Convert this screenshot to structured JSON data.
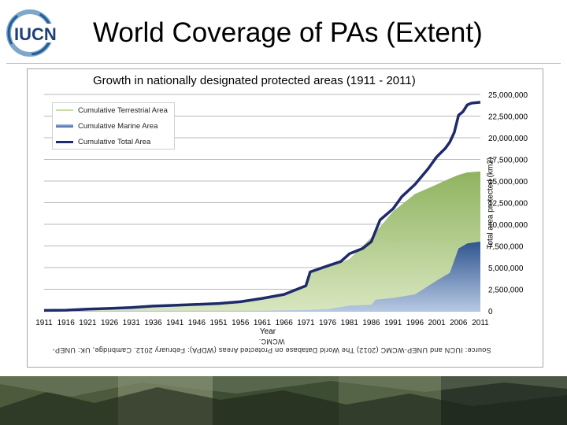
{
  "header": {
    "logo_text": "IUCN",
    "title": "World Coverage of PAs (Extent)"
  },
  "chart_data": {
    "type": "area",
    "title": "Growth in nationally designated protected areas (1911 - 2011)",
    "xlabel": "Year",
    "ylabel": "Total area protected (km2)",
    "xlim": [
      1911,
      2011
    ],
    "ylim": [
      0,
      25000000
    ],
    "x_ticks": [
      "1911",
      "1916",
      "1921",
      "1926",
      "1931",
      "1936",
      "1941",
      "1946",
      "1951",
      "1956",
      "1961",
      "1966",
      "1971",
      "1976",
      "1981",
      "1986",
      "1991",
      "1996",
      "2001",
      "2006",
      "2011"
    ],
    "y_ticks": [
      "0",
      "2,500,000",
      "5,000,000",
      "7,500,000",
      "10,000,000",
      "12,500,000",
      "15,000,000",
      "17,500,000",
      "20,000,000",
      "22,500,000",
      "25,000,000"
    ],
    "legend_position": "top-left",
    "grid": true,
    "series": [
      {
        "name": "Cumulative Terrestrial Area",
        "color": "#a8c77e",
        "x": [
          1911,
          1916,
          1921,
          1926,
          1931,
          1936,
          1941,
          1946,
          1951,
          1956,
          1961,
          1966,
          1971,
          1972,
          1976,
          1981,
          1986,
          1991,
          1996,
          2001,
          2004,
          2006,
          2008,
          2011
        ],
        "values": [
          50000,
          80000,
          200000,
          280000,
          380000,
          550000,
          650000,
          750000,
          850000,
          1050000,
          1400000,
          1850000,
          2800000,
          4400000,
          5000000,
          6000000,
          8500000,
          11500000,
          13500000,
          14600000,
          15300000,
          15700000,
          16000000,
          16100000
        ]
      },
      {
        "name": "Cumulative Marine Area",
        "color": "#3a5f9e",
        "x": [
          1911,
          1960,
          1966,
          1971,
          1976,
          1981,
          1986,
          1987,
          1991,
          1996,
          2001,
          2004,
          2006,
          2008,
          2011
        ],
        "values": [
          0,
          30000,
          60000,
          100000,
          200000,
          600000,
          700000,
          1300000,
          1500000,
          1900000,
          3500000,
          4400000,
          7200000,
          7800000,
          8000000
        ]
      },
      {
        "name": "Cumulative Total Area",
        "color": "#1f2a6b",
        "x": [
          1911,
          1916,
          1921,
          1926,
          1931,
          1936,
          1941,
          1946,
          1951,
          1956,
          1961,
          1966,
          1971,
          1972,
          1976,
          1979,
          1981,
          1984,
          1986,
          1988,
          1991,
          1993,
          1996,
          1999,
          2001,
          2003,
          2004,
          2005,
          2006,
          2007,
          2008,
          2009,
          2011
        ],
        "values": [
          50000,
          80000,
          200000,
          280000,
          380000,
          550000,
          650000,
          750000,
          850000,
          1050000,
          1450000,
          1900000,
          2900000,
          4500000,
          5200000,
          5700000,
          6600000,
          7200000,
          8000000,
          10500000,
          11800000,
          13200000,
          14600000,
          16400000,
          17800000,
          18800000,
          19500000,
          20600000,
          22600000,
          23000000,
          23800000,
          24000000,
          24100000
        ]
      }
    ]
  },
  "source_text": "Source: IUCN and UNEP-WCMC (2012) The World Database on Protected Areas (WDPA): February 2012. Cambridge, UK: UNEP-WCMC."
}
